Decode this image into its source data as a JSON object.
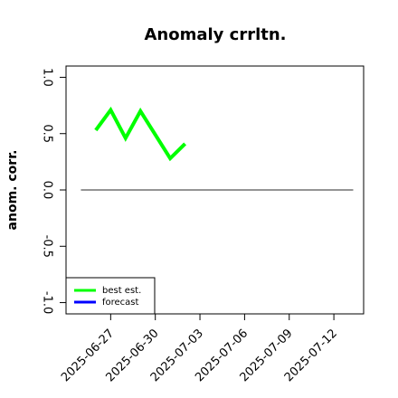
{
  "chart_data": {
    "type": "line",
    "title": "Anomaly crrltn.",
    "y_label": "anom. corr.",
    "x": [
      "2025-06-26",
      "2025-06-27",
      "2025-06-28",
      "2025-06-29",
      "2025-06-30",
      "2025-07-01",
      "2025-07-02"
    ],
    "series": [
      {
        "name": "best est.",
        "color": "#00ff00",
        "values": [
          0.53,
          0.71,
          0.46,
          0.7,
          0.49,
          0.28,
          0.41
        ]
      },
      {
        "name": "forecast",
        "color": "#0000ff",
        "values": [
          null,
          null,
          null,
          null,
          null,
          null,
          null
        ]
      }
    ],
    "xlim": [
      "2025-06-24",
      "2025-07-14"
    ],
    "xticks": [
      "2025-06-27",
      "2025-06-30",
      "2025-07-03",
      "2025-07-06",
      "2025-07-09",
      "2025-07-12"
    ],
    "highlight_xtick": "2025-07-03",
    "highlight_color": "#228b22",
    "ylim": [
      -1.1,
      1.1
    ],
    "yticks": [
      {
        "value": -1,
        "label": "-1.0"
      },
      {
        "value": -0.5,
        "label": "-0.5"
      },
      {
        "value": 0,
        "label": "0.0"
      },
      {
        "value": 0.5,
        "label": "0.5"
      },
      {
        "value": 1,
        "label": "1.0"
      }
    ],
    "reference_line": 0,
    "legend": "bottom-left"
  }
}
